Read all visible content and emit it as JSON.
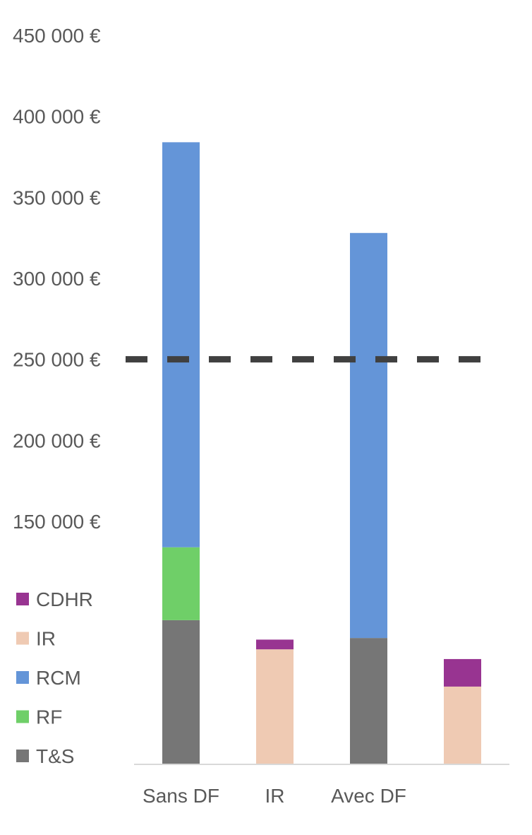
{
  "chart_data": {
    "type": "bar",
    "stacked": true,
    "categories": [
      "Sans DF",
      "IR",
      "Avec DF",
      ""
    ],
    "series": [
      {
        "name": "T&S",
        "color": "#767676",
        "values": [
          89000,
          0,
          78000,
          0
        ]
      },
      {
        "name": "RF",
        "color": "#6fcf68",
        "values": [
          45000,
          0,
          0,
          0
        ]
      },
      {
        "name": "RCM",
        "color": "#6495d8",
        "values": [
          250000,
          0,
          250000,
          0
        ]
      },
      {
        "name": "IR",
        "color": "#efcab3",
        "values": [
          0,
          71000,
          0,
          48000
        ]
      },
      {
        "name": "CDHR",
        "color": "#983491",
        "values": [
          0,
          6000,
          0,
          17000
        ]
      }
    ],
    "ylim": [
      0,
      450000
    ],
    "yticks": [
      "450 000 €",
      "400 000 €",
      "350 000 €",
      "300 000 €",
      "250 000 €",
      "200 000 €",
      "150 000 €"
    ],
    "ytick_values": [
      450000,
      400000,
      350000,
      300000,
      250000,
      200000,
      150000
    ],
    "threshold": {
      "value": 250000,
      "color": "#404040",
      "style": "dashed"
    },
    "legend": {
      "placement": "left",
      "order": [
        "CDHR",
        "IR",
        "RCM",
        "RF",
        "T&S"
      ]
    },
    "grid": false
  }
}
